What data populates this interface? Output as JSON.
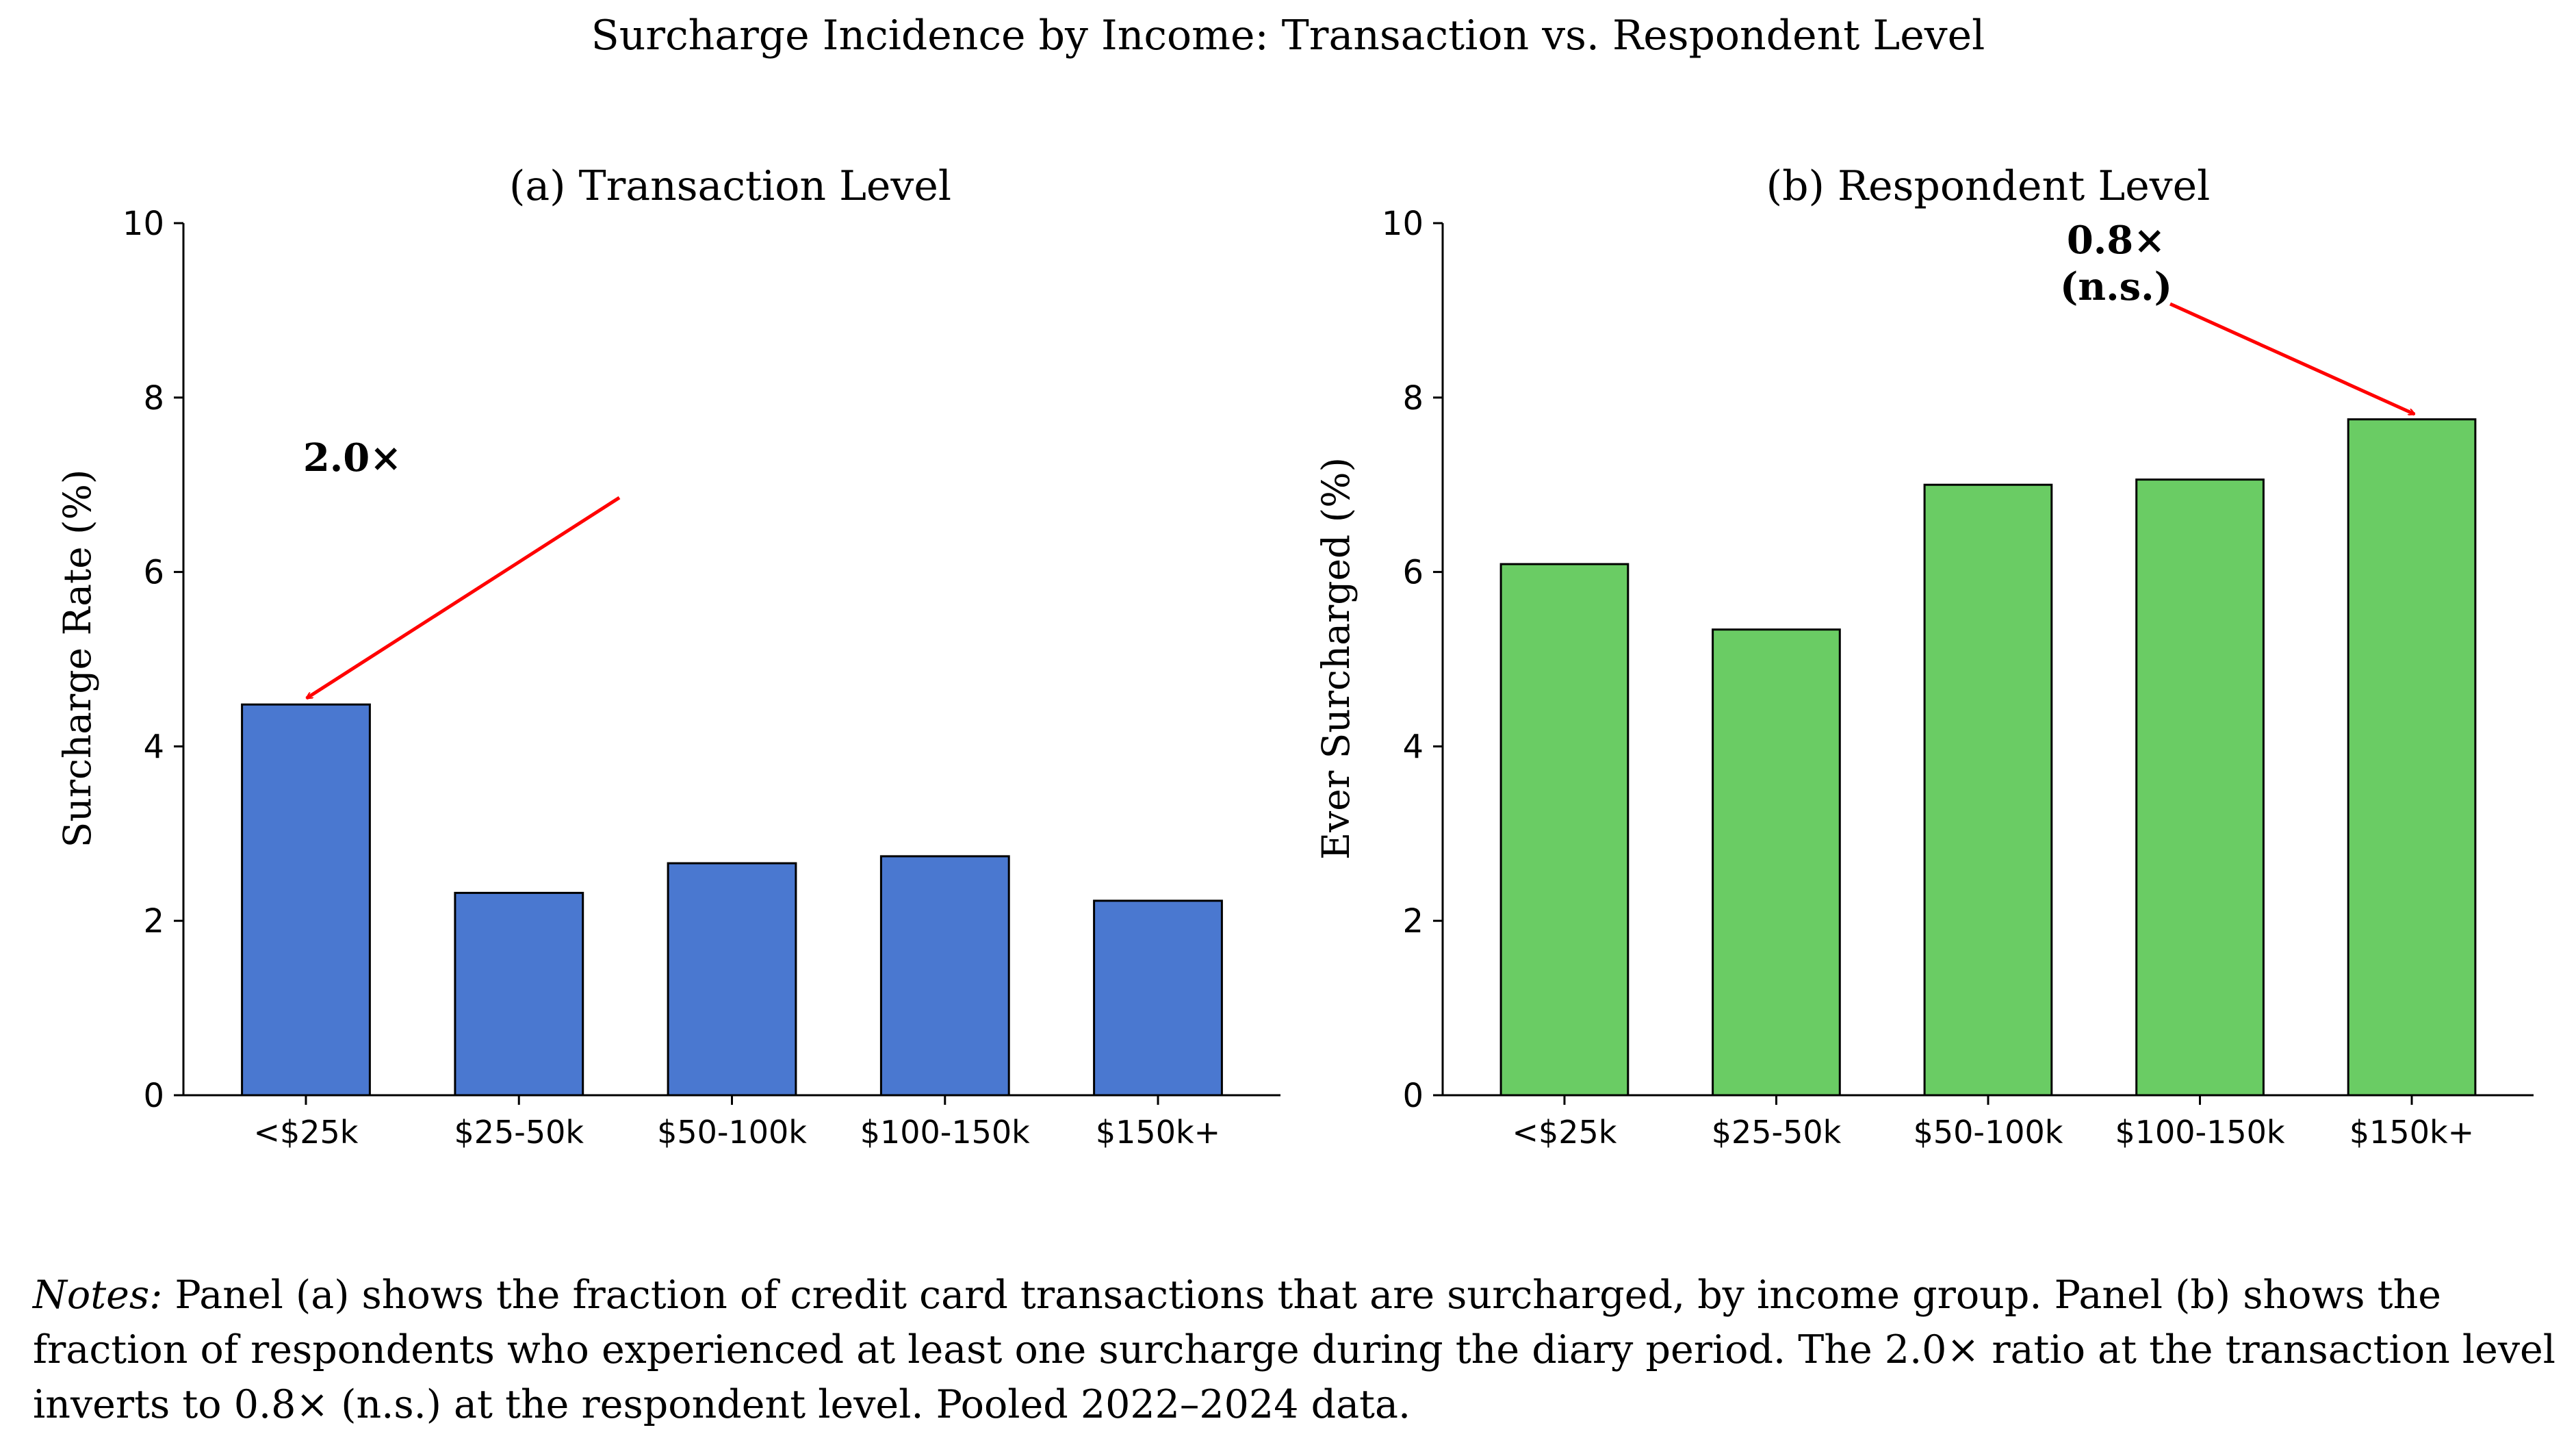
{
  "figure": {
    "title": "Surcharge Incidence by Income: Transaction vs. Respondent Level"
  },
  "chart_data": [
    {
      "type": "bar",
      "title": "(a) Transaction Level",
      "xlabel": "",
      "ylabel": "Surcharge Rate (%)",
      "categories": [
        "<$25k",
        "$25-50k",
        "$50-100k",
        "$100-150k",
        "$150k+"
      ],
      "values": [
        4.48,
        2.32,
        2.66,
        2.74,
        2.23
      ],
      "ylim": [
        0,
        10
      ],
      "yticks": [
        "0",
        "2",
        "4",
        "6",
        "8",
        "10"
      ],
      "bar_color": "#4a78d0",
      "grid": false,
      "annotation": {
        "text": "2.0×",
        "color": "#ff0000",
        "target_category": "<$25k"
      }
    },
    {
      "type": "bar",
      "title": "(b) Respondent Level",
      "xlabel": "",
      "ylabel": "Ever Surcharged (%)",
      "categories": [
        "<$25k",
        "$25-50k",
        "$50-100k",
        "$100-150k",
        "$150k+"
      ],
      "values": [
        6.09,
        5.34,
        7.0,
        7.06,
        7.75
      ],
      "ylim": [
        0,
        10
      ],
      "yticks": [
        "0",
        "2",
        "4",
        "6",
        "8",
        "10"
      ],
      "bar_color": "#6acc64",
      "grid": false,
      "annotation": {
        "text": "0.8×",
        "text2": "(n.s.)",
        "color": "#ff0000",
        "target_category": "$150k+"
      }
    }
  ],
  "notes": {
    "lead": "Notes:",
    "text": " Panel (a) shows the fraction of credit card transactions that are surcharged, by income group. Panel (b) shows the fraction of respondents who experienced at least one surcharge during the diary period. The 2.0× ratio at the transaction level inverts to 0.8× (n.s.) at the respondent level. Pooled 2022–2024 data."
  }
}
